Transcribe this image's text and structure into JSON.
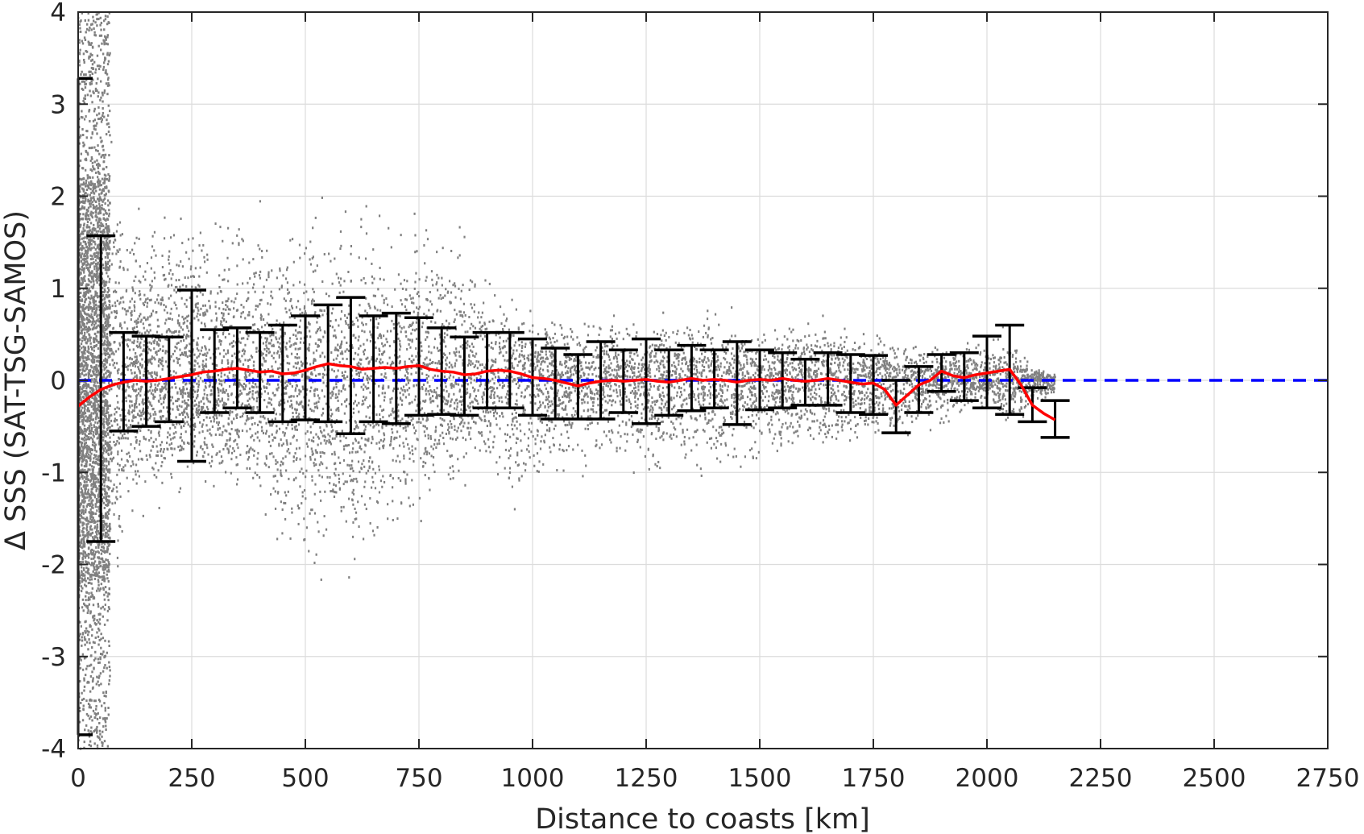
{
  "chart_data": {
    "type": "scatter",
    "title": "",
    "xlabel": "Distance to coasts [km]",
    "ylabel": "Δ SSS (SAT-TSG-SAMOS)",
    "xlim": [
      0,
      2750
    ],
    "ylim": [
      -4,
      4
    ],
    "x_ticks": [
      0,
      250,
      500,
      750,
      1000,
      1250,
      1500,
      1750,
      2000,
      2250,
      2500,
      2750
    ],
    "y_ticks": [
      -4,
      -3,
      -2,
      -1,
      0,
      1,
      2,
      3,
      4
    ],
    "grid": true,
    "legend": "none",
    "colors": {
      "scatter": "#808080",
      "mean_line": "#ff0000",
      "error_bars": "#000000",
      "zero_line": "#0000ff",
      "axes": "#262626"
    },
    "scatter_envelope": {
      "description_free": true,
      "x": [
        0,
        25,
        50,
        75,
        100,
        150,
        200,
        250,
        300,
        350,
        400,
        450,
        500,
        550,
        600,
        650,
        700,
        750,
        800,
        850,
        900,
        950,
        1000,
        1050,
        1100,
        1150,
        1200,
        1250,
        1300,
        1350,
        1400,
        1450,
        1500,
        1550,
        1600,
        1650,
        1700,
        1750,
        1800,
        1850,
        1900,
        1950,
        2000,
        2050,
        2100,
        2150
      ],
      "upper": [
        4,
        4,
        4,
        3.5,
        2.5,
        2.4,
        2.4,
        2.5,
        2.4,
        2.3,
        2.3,
        2.3,
        2.3,
        2.3,
        2.3,
        2.3,
        2.3,
        2.3,
        2.2,
        2.0,
        1.5,
        1.3,
        1.1,
        1.0,
        0.9,
        0.95,
        0.85,
        0.9,
        0.9,
        0.95,
        0.9,
        0.9,
        0.85,
        0.8,
        0.9,
        0.9,
        0.85,
        0.6,
        0.7,
        0.6,
        0.6,
        0.65,
        0.7,
        0.7,
        0.2,
        0.1
      ],
      "lower": [
        -4,
        -4,
        -4,
        -3.5,
        -2.2,
        -1.9,
        -1.6,
        -1.5,
        -1.5,
        -1.6,
        -1.8,
        -2.6,
        -2.6,
        -2.6,
        -3.0,
        -2.6,
        -2.2,
        -2.0,
        -1.6,
        -1.5,
        -1.3,
        -2.0,
        -1.6,
        -1.3,
        -1.2,
        -1.1,
        -1.2,
        -1.3,
        -1.4,
        -1.4,
        -1.3,
        -1.3,
        -1.2,
        -1.2,
        -1.1,
        -1.2,
        -1.0,
        -0.95,
        -0.9,
        -0.8,
        -0.7,
        -0.5,
        -0.35,
        -0.85,
        -0.4,
        -0.3
      ]
    },
    "series": [
      {
        "name": "",
        "kind": "mean_line",
        "x": [
          0,
          25,
          50,
          75,
          100,
          125,
          150,
          175,
          200,
          225,
          250,
          275,
          300,
          325,
          350,
          375,
          400,
          425,
          450,
          475,
          500,
          525,
          550,
          575,
          600,
          625,
          650,
          675,
          700,
          725,
          750,
          775,
          800,
          825,
          850,
          875,
          900,
          925,
          950,
          975,
          1000,
          1025,
          1050,
          1075,
          1100,
          1125,
          1150,
          1175,
          1200,
          1225,
          1250,
          1275,
          1300,
          1325,
          1350,
          1375,
          1400,
          1425,
          1450,
          1475,
          1500,
          1525,
          1550,
          1575,
          1600,
          1625,
          1650,
          1675,
          1700,
          1725,
          1750,
          1775,
          1800,
          1825,
          1850,
          1875,
          1900,
          1925,
          1950,
          1975,
          2000,
          2025,
          2050,
          2075,
          2100,
          2125,
          2150
        ],
        "y": [
          -0.28,
          -0.18,
          -0.1,
          -0.05,
          -0.02,
          0.0,
          -0.01,
          0.0,
          0.02,
          0.04,
          0.06,
          0.09,
          0.1,
          0.12,
          0.13,
          0.11,
          0.09,
          0.1,
          0.07,
          0.08,
          0.11,
          0.15,
          0.18,
          0.16,
          0.15,
          0.12,
          0.13,
          0.14,
          0.13,
          0.15,
          0.16,
          0.12,
          0.1,
          0.09,
          0.06,
          0.07,
          0.1,
          0.11,
          0.1,
          0.07,
          0.03,
          0.02,
          0.0,
          -0.03,
          -0.06,
          -0.03,
          -0.01,
          0.0,
          -0.01,
          0.0,
          0.01,
          -0.01,
          -0.02,
          0.0,
          0.02,
          0.0,
          0.01,
          0.0,
          -0.02,
          0.0,
          0.01,
          0.0,
          0.02,
          0.0,
          -0.01,
          0.0,
          0.02,
          0.0,
          -0.02,
          -0.04,
          -0.03,
          -0.1,
          -0.27,
          -0.16,
          -0.05,
          0.0,
          0.1,
          0.05,
          0.03,
          0.06,
          0.08,
          0.1,
          0.12,
          -0.05,
          -0.27,
          -0.36,
          -0.43
        ]
      },
      {
        "name": "",
        "kind": "error_bars",
        "x": [
          0,
          50,
          100,
          150,
          200,
          250,
          300,
          350,
          400,
          450,
          500,
          550,
          600,
          650,
          700,
          750,
          800,
          850,
          900,
          950,
          1000,
          1050,
          1100,
          1150,
          1200,
          1250,
          1300,
          1350,
          1400,
          1450,
          1500,
          1550,
          1600,
          1650,
          1700,
          1750,
          1800,
          1850,
          1900,
          1950,
          2000,
          2050,
          2100,
          2150
        ],
        "lower": [
          -3.85,
          -1.75,
          -0.55,
          -0.5,
          -0.45,
          -0.88,
          -0.35,
          -0.3,
          -0.35,
          -0.45,
          -0.43,
          -0.45,
          -0.58,
          -0.45,
          -0.47,
          -0.38,
          -0.37,
          -0.38,
          -0.3,
          -0.3,
          -0.38,
          -0.42,
          -0.42,
          -0.42,
          -0.35,
          -0.47,
          -0.38,
          -0.33,
          -0.3,
          -0.48,
          -0.32,
          -0.3,
          -0.27,
          -0.27,
          -0.35,
          -0.37,
          -0.57,
          -0.35,
          -0.12,
          -0.22,
          -0.3,
          -0.37,
          -0.45,
          -0.62
        ],
        "upper": [
          3.28,
          1.57,
          0.52,
          0.48,
          0.47,
          0.98,
          0.55,
          0.57,
          0.52,
          0.6,
          0.7,
          0.82,
          0.9,
          0.7,
          0.73,
          0.68,
          0.57,
          0.47,
          0.52,
          0.52,
          0.45,
          0.35,
          0.28,
          0.42,
          0.33,
          0.45,
          0.33,
          0.38,
          0.33,
          0.42,
          0.33,
          0.3,
          0.23,
          0.3,
          0.28,
          0.27,
          0.0,
          0.15,
          0.28,
          0.3,
          0.48,
          0.6,
          -0.08,
          -0.22
        ]
      },
      {
        "name": "",
        "kind": "reference_line",
        "y": 0
      }
    ]
  }
}
